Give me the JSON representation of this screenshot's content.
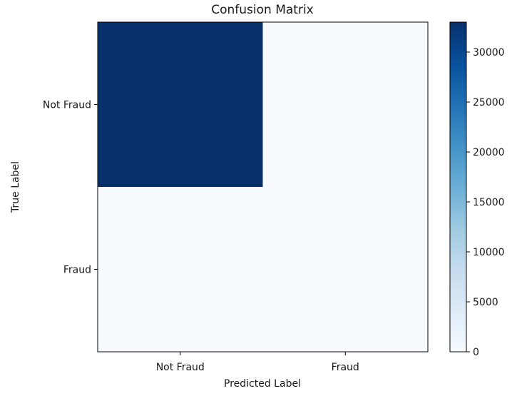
{
  "chart_data": {
    "type": "heatmap",
    "title": "Confusion Matrix",
    "xlabel": "Predicted Label",
    "ylabel": "True Label",
    "x_categories": [
      "Not Fraud",
      "Fraud"
    ],
    "y_categories": [
      "Not Fraud",
      "Fraud"
    ],
    "values": [
      [
        32900,
        0
      ],
      [
        0,
        0
      ]
    ],
    "colormap": "Blues",
    "colorbar": {
      "range": [
        0,
        33000
      ],
      "ticks": [
        "0",
        "5000",
        "10000",
        "15000",
        "20000",
        "25000",
        "30000"
      ]
    },
    "grid": false
  }
}
